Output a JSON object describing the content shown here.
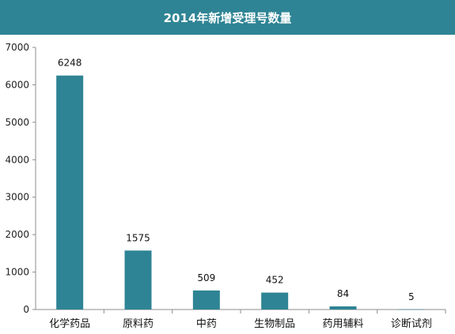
{
  "chart_data": {
    "type": "bar",
    "title": "2014年新增受理号数量",
    "categories": [
      "化学药品",
      "原料药",
      "中药",
      "生物制品",
      "药用辅料",
      "诊断试剂"
    ],
    "values": [
      6248,
      1575,
      509,
      452,
      84,
      5
    ],
    "ylim": [
      0,
      7000
    ],
    "yticks": [
      0,
      1000,
      2000,
      3000,
      4000,
      5000,
      6000,
      7000
    ],
    "xlabel": "",
    "ylabel": "",
    "grid": false,
    "legend": "none",
    "bar_color": "#2e8494",
    "title_bg_color": "#2e8494"
  }
}
